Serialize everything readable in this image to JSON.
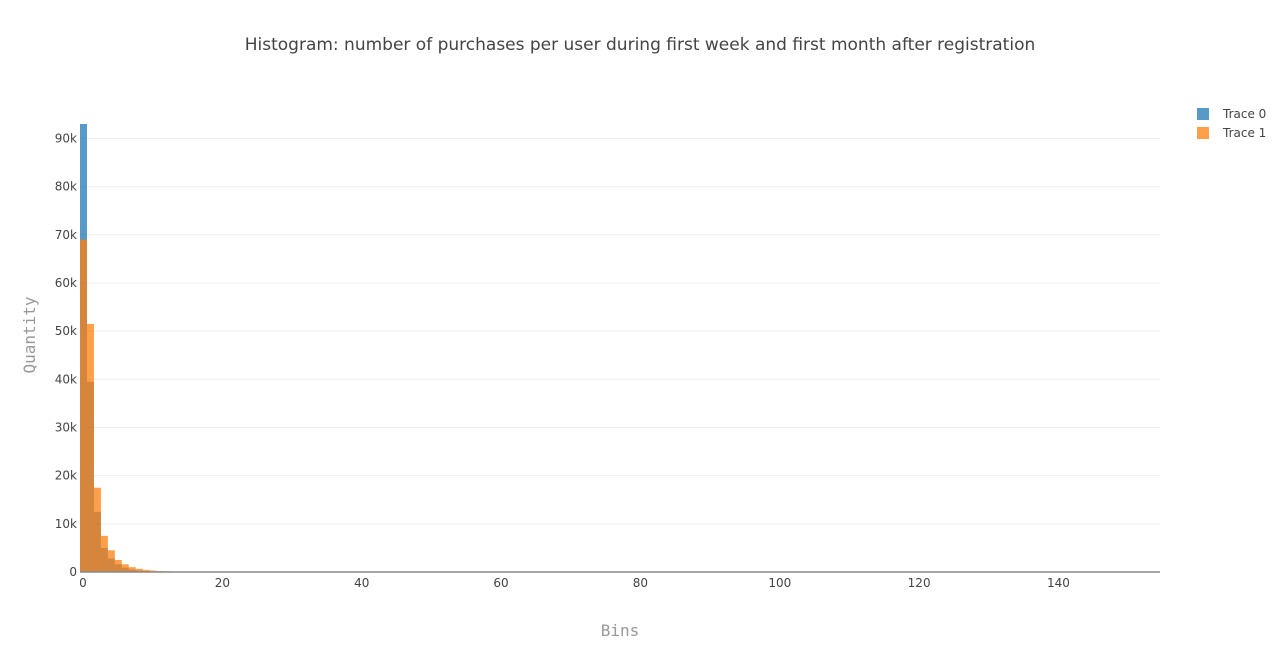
{
  "chart_data": {
    "type": "bar",
    "subtype": "overlaid-histogram",
    "title": "Histogram: number of purchases per user during first week and first month after registration",
    "xlabel": "Bins",
    "ylabel": "Quantity",
    "xlim": [
      0,
      155
    ],
    "ylim": [
      0,
      93000
    ],
    "bin_width": 1,
    "x_ticks": [
      0,
      20,
      40,
      60,
      80,
      100,
      120,
      140
    ],
    "x_tick_labels": [
      "0",
      "20",
      "40",
      "60",
      "80",
      "100",
      "120",
      "140"
    ],
    "y_ticks": [
      0,
      10000,
      20000,
      30000,
      40000,
      50000,
      60000,
      70000,
      80000,
      90000
    ],
    "y_tick_labels": [
      "0",
      "10k",
      "20k",
      "30k",
      "40k",
      "50k",
      "60k",
      "70k",
      "80k",
      "90k"
    ],
    "grid": true,
    "legend_position": "top-right",
    "bar_opacity": 0.75,
    "series": [
      {
        "name": "Trace 0",
        "color": "#1f77b4",
        "bins": [
          0,
          1,
          2,
          3,
          4,
          5,
          6,
          7,
          8,
          9,
          10
        ],
        "values": [
          93000,
          39500,
          12500,
          5000,
          2800,
          1600,
          900,
          500,
          300,
          180,
          100
        ]
      },
      {
        "name": "Trace 1",
        "color": "#ff7f0e",
        "bins": [
          0,
          1,
          2,
          3,
          4,
          5,
          6,
          7,
          8,
          9,
          10,
          11,
          12,
          13,
          14
        ],
        "values": [
          69000,
          51500,
          17500,
          7500,
          4500,
          2500,
          1600,
          1000,
          650,
          450,
          300,
          200,
          150,
          100,
          80
        ]
      }
    ]
  }
}
